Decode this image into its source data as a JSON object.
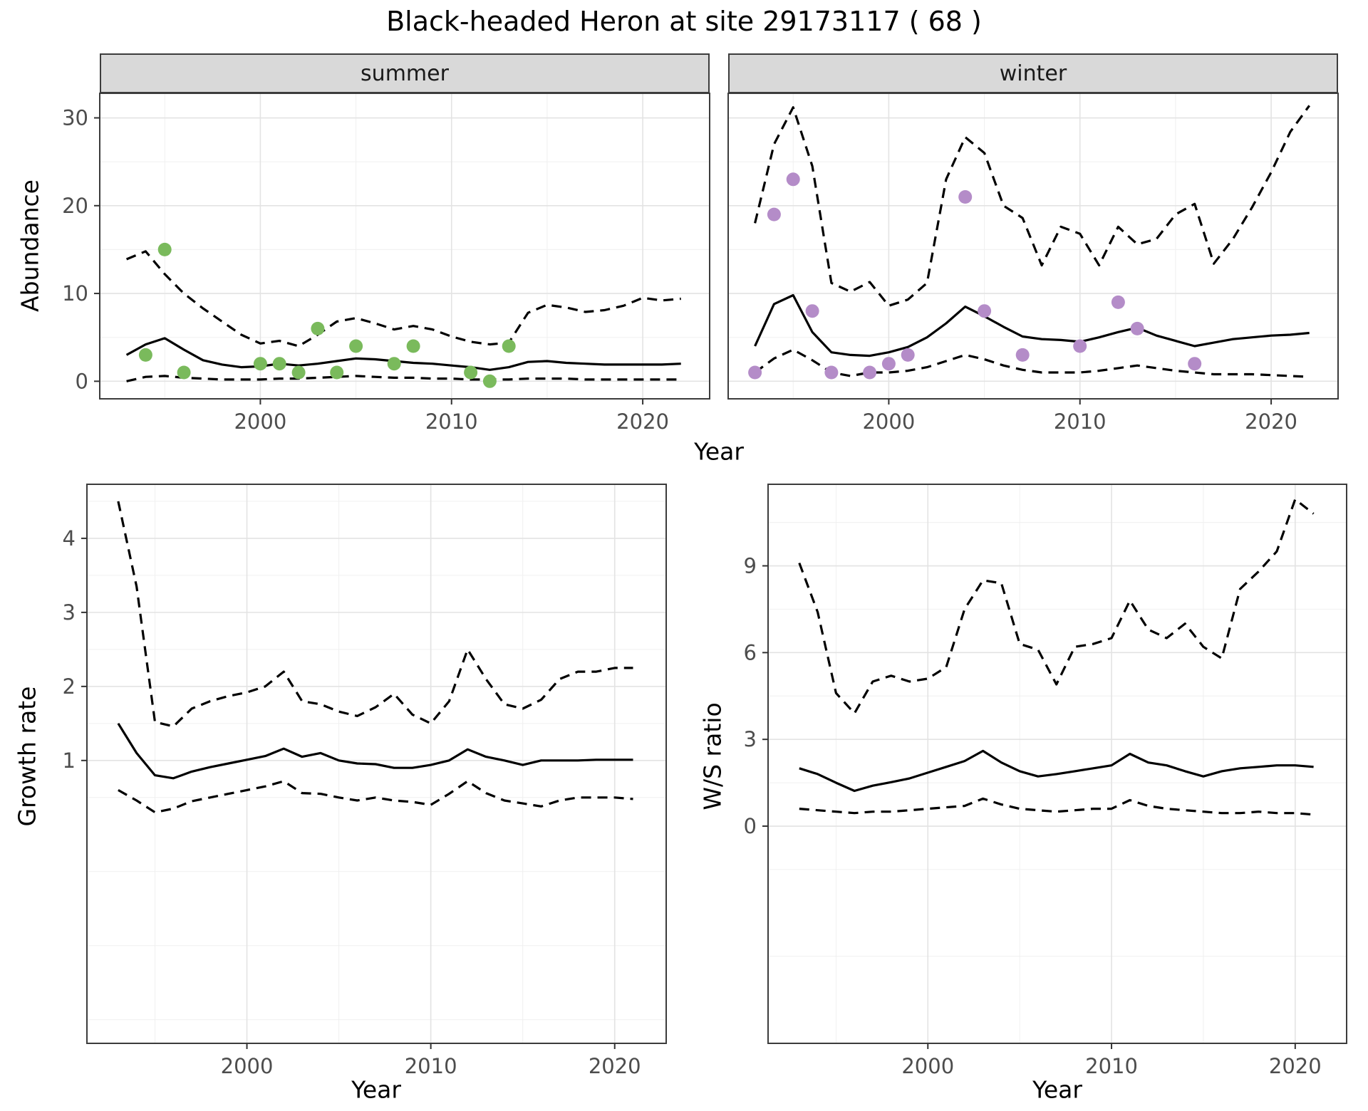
{
  "title": "Black-headed Heron at site 29173117 ( 68 )",
  "facets": {
    "summer": "summer",
    "winter": "winter"
  },
  "axis_titles": {
    "abundance": "Abundance",
    "year": "Year",
    "growth_rate": "Growth rate",
    "ws_ratio": "W/S ratio"
  },
  "colors": {
    "summer_points": "#7aba5c",
    "winter_points": "#b48cc8",
    "line": "#000000",
    "strip_background": "#d9d9d9",
    "grid_major": "#e3e3e3",
    "grid_minor": "#f0f0f0",
    "axis_text": "#4d4d4d",
    "panel_border": "#3c3c3c"
  },
  "chart_data": [
    {
      "id": "abundance_summer",
      "type": "line",
      "facet": "summer",
      "xlabel": "Year",
      "ylabel": "Abundance",
      "xlim": [
        1991.6,
        2023.5
      ],
      "ylim": [
        -2.0,
        32.8
      ],
      "xticks": [
        2000,
        2010,
        2020
      ],
      "yticks": [
        0,
        10,
        20,
        30
      ],
      "grid": true,
      "show_y_axis": true,
      "x": [
        1993,
        1994,
        1995,
        1996,
        1997,
        1998,
        1999,
        2000,
        2001,
        2002,
        2003,
        2004,
        2005,
        2006,
        2007,
        2008,
        2009,
        2010,
        2011,
        2012,
        2013,
        2014,
        2015,
        2016,
        2017,
        2018,
        2019,
        2020,
        2021,
        2022
      ],
      "series": [
        {
          "name": "median",
          "style": "solid",
          "values": [
            3.0,
            4.2,
            4.9,
            3.6,
            2.4,
            1.9,
            1.6,
            1.7,
            2.0,
            1.8,
            2.0,
            2.3,
            2.6,
            2.5,
            2.3,
            2.1,
            2.0,
            1.8,
            1.6,
            1.3,
            1.6,
            2.2,
            2.3,
            2.1,
            2.0,
            1.9,
            1.9,
            1.9,
            1.9,
            2.0
          ]
        },
        {
          "name": "upper_ci",
          "style": "dashed",
          "values": [
            13.9,
            14.8,
            12.2,
            10.0,
            8.3,
            6.8,
            5.3,
            4.3,
            4.6,
            4.0,
            5.3,
            6.8,
            7.2,
            6.6,
            5.9,
            6.3,
            5.9,
            5.1,
            4.5,
            4.2,
            4.4,
            7.8,
            8.7,
            8.4,
            7.9,
            8.1,
            8.6,
            9.5,
            9.2,
            9.4
          ]
        },
        {
          "name": "lower_ci",
          "style": "dashed",
          "values": [
            0.0,
            0.5,
            0.6,
            0.4,
            0.3,
            0.2,
            0.2,
            0.2,
            0.3,
            0.3,
            0.4,
            0.5,
            0.6,
            0.5,
            0.4,
            0.4,
            0.3,
            0.3,
            0.2,
            0.2,
            0.2,
            0.3,
            0.3,
            0.3,
            0.2,
            0.2,
            0.2,
            0.2,
            0.2,
            0.2
          ]
        }
      ],
      "points": {
        "name": "observed_counts",
        "color": "#7aba5c",
        "x": [
          1994,
          1995,
          1996,
          2000,
          2001,
          2002,
          2003,
          2004,
          2005,
          2007,
          2008,
          2011,
          2012,
          2013
        ],
        "y": [
          3,
          15,
          1,
          2,
          2,
          1,
          6,
          1,
          4,
          2,
          4,
          1,
          0,
          4
        ]
      }
    },
    {
      "id": "abundance_winter",
      "type": "line",
      "facet": "winter",
      "xlabel": "Year",
      "ylabel": "Abundance",
      "xlim": [
        1991.6,
        2023.5
      ],
      "ylim": [
        -2.0,
        32.8
      ],
      "xticks": [
        2000,
        2010,
        2020
      ],
      "yticks": [
        0,
        10,
        20,
        30
      ],
      "grid": true,
      "show_y_axis": false,
      "x": [
        1993,
        1994,
        1995,
        1996,
        1997,
        1998,
        1999,
        2000,
        2001,
        2002,
        2003,
        2004,
        2005,
        2006,
        2007,
        2008,
        2009,
        2010,
        2011,
        2012,
        2013,
        2014,
        2015,
        2016,
        2017,
        2018,
        2019,
        2020,
        2021,
        2022
      ],
      "series": [
        {
          "name": "median",
          "style": "solid",
          "values": [
            4.0,
            8.8,
            9.8,
            5.6,
            3.3,
            3.0,
            2.9,
            3.3,
            3.9,
            5.0,
            6.6,
            8.5,
            7.4,
            6.2,
            5.1,
            4.8,
            4.7,
            4.5,
            5.0,
            5.6,
            6.1,
            5.2,
            4.6,
            4.0,
            4.4,
            4.8,
            5.0,
            5.2,
            5.3,
            5.5
          ]
        },
        {
          "name": "upper_ci",
          "style": "dashed",
          "values": [
            18.0,
            27.0,
            31.2,
            24.5,
            11.2,
            10.2,
            11.3,
            8.6,
            9.3,
            11.2,
            23.0,
            27.8,
            26.0,
            20.0,
            18.6,
            13.2,
            17.6,
            16.8,
            13.2,
            17.6,
            15.6,
            16.2,
            19.0,
            20.2,
            13.4,
            16.2,
            19.8,
            23.8,
            28.4,
            31.4
          ]
        },
        {
          "name": "lower_ci",
          "style": "dashed",
          "values": [
            1.0,
            2.6,
            3.6,
            2.4,
            1.0,
            0.6,
            1.0,
            1.0,
            1.2,
            1.6,
            2.3,
            3.0,
            2.5,
            1.8,
            1.3,
            1.0,
            1.0,
            1.0,
            1.2,
            1.5,
            1.8,
            1.5,
            1.2,
            1.0,
            0.8,
            0.8,
            0.8,
            0.7,
            0.6,
            0.5
          ]
        }
      ],
      "points": {
        "name": "observed_counts",
        "color": "#b48cc8",
        "x": [
          1993,
          1994,
          1995,
          1996,
          1997,
          1999,
          2000,
          2001,
          2004,
          2005,
          2007,
          2010,
          2012,
          2013,
          2016
        ],
        "y": [
          1,
          19,
          23,
          8,
          1,
          1,
          2,
          3,
          21,
          8,
          3,
          4,
          9,
          6,
          2
        ]
      }
    },
    {
      "id": "growth_rate",
      "type": "line",
      "xlabel": "Year",
      "ylabel": "Growth rate",
      "xlim": [
        1991.3,
        2022.8
      ],
      "ylim": [
        -2.82,
        4.73
      ],
      "xticks": [
        2000,
        2010,
        2020
      ],
      "yticks": [
        1,
        2,
        3,
        4
      ],
      "grid": true,
      "show_y_axis": true,
      "x": [
        1993,
        1994,
        1995,
        1996,
        1997,
        1998,
        1999,
        2000,
        2001,
        2002,
        2003,
        2004,
        2005,
        2006,
        2007,
        2008,
        2009,
        2010,
        2011,
        2012,
        2013,
        2014,
        2015,
        2016,
        2017,
        2018,
        2019,
        2020,
        2021
      ],
      "series": [
        {
          "name": "median",
          "style": "solid",
          "values": [
            1.5,
            1.1,
            0.8,
            0.76,
            0.85,
            0.91,
            0.96,
            1.01,
            1.06,
            1.16,
            1.05,
            1.1,
            1.0,
            0.96,
            0.95,
            0.9,
            0.9,
            0.94,
            1.0,
            1.15,
            1.05,
            1.0,
            0.94,
            1.0,
            1.0,
            1.0,
            1.01,
            1.01,
            1.01
          ]
        },
        {
          "name": "upper_ci",
          "style": "dashed",
          "values": [
            4.5,
            3.35,
            1.52,
            1.46,
            1.7,
            1.8,
            1.87,
            1.92,
            2.0,
            2.2,
            1.8,
            1.76,
            1.66,
            1.6,
            1.72,
            1.9,
            1.62,
            1.5,
            1.8,
            2.5,
            2.1,
            1.76,
            1.7,
            1.82,
            2.1,
            2.2,
            2.2,
            2.25,
            2.25
          ]
        },
        {
          "name": "lower_ci",
          "style": "dashed",
          "values": [
            0.6,
            0.46,
            0.3,
            0.35,
            0.45,
            0.5,
            0.55,
            0.6,
            0.65,
            0.72,
            0.56,
            0.55,
            0.5,
            0.46,
            0.5,
            0.46,
            0.44,
            0.4,
            0.55,
            0.72,
            0.56,
            0.46,
            0.42,
            0.38,
            0.46,
            0.5,
            0.5,
            0.5,
            0.48
          ]
        }
      ]
    },
    {
      "id": "ws_ratio",
      "type": "line",
      "xlabel": "Year",
      "ylabel": "W/S ratio",
      "xlim": [
        1991.3,
        2022.8
      ],
      "ylim": [
        -7.51,
        11.82
      ],
      "xticks": [
        2000,
        2010,
        2020
      ],
      "yticks": [
        0,
        3,
        6,
        9
      ],
      "grid": true,
      "show_y_axis": true,
      "x": [
        1993,
        1994,
        1995,
        1996,
        1997,
        1998,
        1999,
        2000,
        2001,
        2002,
        2003,
        2004,
        2005,
        2006,
        2007,
        2008,
        2009,
        2010,
        2011,
        2012,
        2013,
        2014,
        2015,
        2016,
        2017,
        2018,
        2019,
        2020,
        2021
      ],
      "series": [
        {
          "name": "median",
          "style": "solid",
          "values": [
            2.0,
            1.8,
            1.5,
            1.22,
            1.4,
            1.52,
            1.65,
            1.85,
            2.05,
            2.25,
            2.6,
            2.2,
            1.9,
            1.72,
            1.8,
            1.9,
            2.0,
            2.1,
            2.5,
            2.2,
            2.1,
            1.9,
            1.72,
            1.9,
            2.0,
            2.05,
            2.1,
            2.1,
            2.05
          ]
        },
        {
          "name": "upper_ci",
          "style": "dashed",
          "values": [
            9.1,
            7.4,
            4.6,
            3.9,
            5.0,
            5.2,
            5.0,
            5.1,
            5.5,
            7.5,
            8.5,
            8.4,
            6.3,
            6.1,
            4.9,
            6.2,
            6.3,
            6.5,
            7.8,
            6.8,
            6.5,
            7.0,
            6.2,
            5.8,
            8.2,
            8.8,
            9.5,
            11.3,
            10.8
          ]
        },
        {
          "name": "lower_ci",
          "style": "dashed",
          "values": [
            0.6,
            0.55,
            0.5,
            0.45,
            0.5,
            0.5,
            0.55,
            0.6,
            0.65,
            0.7,
            0.95,
            0.75,
            0.6,
            0.55,
            0.5,
            0.55,
            0.6,
            0.6,
            0.9,
            0.7,
            0.6,
            0.55,
            0.5,
            0.45,
            0.45,
            0.5,
            0.45,
            0.45,
            0.4
          ]
        }
      ]
    }
  ]
}
